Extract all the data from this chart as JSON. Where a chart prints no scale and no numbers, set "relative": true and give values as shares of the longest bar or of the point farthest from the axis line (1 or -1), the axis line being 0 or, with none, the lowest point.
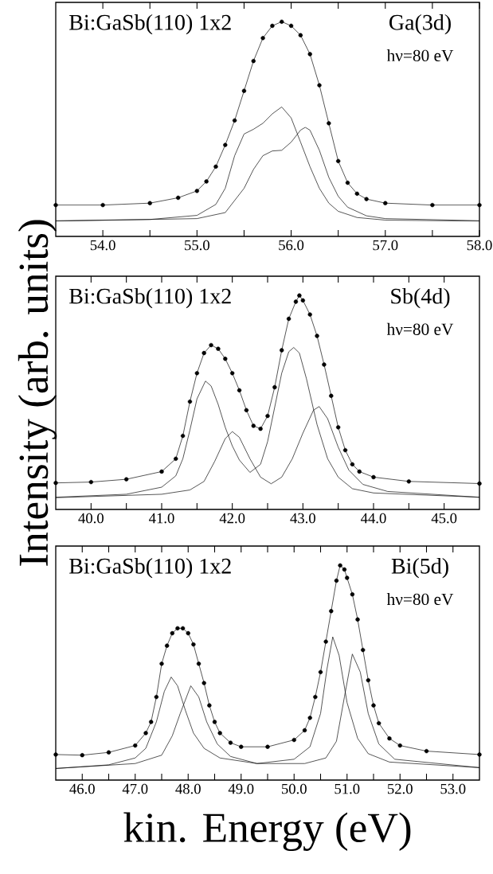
{
  "chart_data": [
    {
      "type": "line",
      "relative": true,
      "xlim": [
        53.5,
        58.0
      ],
      "xticks": [
        {
          "value": 54.0,
          "label": "54.0"
        },
        {
          "value": 54.5,
          "label": null
        },
        {
          "value": 55.0,
          "label": "55.0"
        },
        {
          "value": 55.5,
          "label": null
        },
        {
          "value": 56.0,
          "label": "56.0"
        },
        {
          "value": 56.5,
          "label": null
        },
        {
          "value": 57.0,
          "label": "57.0"
        },
        {
          "value": 57.5,
          "label": null
        },
        {
          "value": 58.0,
          "label": "58.0"
        }
      ],
      "annotations": [
        "Bi:GaSb(110) 1x2",
        "Ga(3d)",
        "hν=80 eV"
      ],
      "series": [
        {
          "type": "scatter",
          "marker": "circle",
          "color": "#000000",
          "x": [
            53.5,
            54.0,
            54.5,
            54.8,
            55.0,
            55.1,
            55.2,
            55.3,
            55.4,
            55.5,
            55.6,
            55.7,
            55.8,
            55.9,
            56.0,
            56.1,
            56.2,
            56.3,
            56.4,
            56.5,
            56.6,
            56.7,
            56.8,
            57.0,
            57.5,
            58.0
          ],
          "values": [
            0.146,
            0.146,
            0.155,
            0.18,
            0.212,
            0.256,
            0.325,
            0.426,
            0.54,
            0.678,
            0.817,
            0.924,
            0.981,
            1.0,
            0.981,
            0.937,
            0.849,
            0.704,
            0.527,
            0.351,
            0.25,
            0.199,
            0.174,
            0.155,
            0.146,
            0.146
          ]
        },
        {
          "type": "line",
          "marker": "none",
          "color": "#000000",
          "x": [
            53.5,
            54.0,
            54.5,
            54.8,
            55.0,
            55.1,
            55.2,
            55.3,
            55.4,
            55.5,
            55.6,
            55.7,
            55.8,
            55.9,
            56.0,
            56.1,
            56.2,
            56.3,
            56.4,
            56.5,
            56.6,
            56.7,
            56.8,
            57.0,
            57.5,
            58.0
          ],
          "values": [
            0.146,
            0.146,
            0.155,
            0.18,
            0.212,
            0.256,
            0.325,
            0.426,
            0.54,
            0.678,
            0.817,
            0.924,
            0.981,
            1.0,
            0.981,
            0.937,
            0.849,
            0.704,
            0.527,
            0.351,
            0.25,
            0.199,
            0.174,
            0.155,
            0.146,
            0.146
          ]
        },
        {
          "type": "line",
          "marker": "none",
          "color": "#000000",
          "x": [
            53.5,
            54.5,
            55.0,
            55.2,
            55.3,
            55.4,
            55.5,
            55.6,
            55.7,
            55.8,
            55.9,
            56.0,
            56.1,
            56.2,
            56.3,
            56.4,
            56.5,
            56.7,
            57.0,
            58.0
          ],
          "values": [
            0.073,
            0.079,
            0.098,
            0.149,
            0.224,
            0.376,
            0.477,
            0.499,
            0.527,
            0.571,
            0.603,
            0.552,
            0.439,
            0.325,
            0.224,
            0.155,
            0.117,
            0.088,
            0.076,
            0.071
          ]
        },
        {
          "type": "line",
          "marker": "none",
          "color": "#000000",
          "x": [
            53.5,
            55.0,
            55.3,
            55.5,
            55.6,
            55.7,
            55.8,
            55.9,
            56.0,
            56.1,
            56.15,
            56.2,
            56.3,
            56.4,
            56.5,
            56.6,
            56.8,
            57.0,
            58.0
          ],
          "values": [
            0.071,
            0.083,
            0.111,
            0.224,
            0.312,
            0.376,
            0.398,
            0.401,
            0.439,
            0.495,
            0.508,
            0.495,
            0.401,
            0.275,
            0.187,
            0.136,
            0.096,
            0.083,
            0.073
          ]
        }
      ]
    },
    {
      "type": "line",
      "relative": true,
      "xlim": [
        39.5,
        45.5
      ],
      "ylabel": "Intensity (arb. units)",
      "xticks": [
        {
          "value": 40.0,
          "label": "40.0"
        },
        {
          "value": 40.5,
          "label": null
        },
        {
          "value": 41.0,
          "label": "41.0"
        },
        {
          "value": 41.5,
          "label": null
        },
        {
          "value": 42.0,
          "label": "42.0"
        },
        {
          "value": 42.5,
          "label": null
        },
        {
          "value": 43.0,
          "label": "43.0"
        },
        {
          "value": 43.5,
          "label": null
        },
        {
          "value": 44.0,
          "label": "44.0"
        },
        {
          "value": 44.5,
          "label": null
        },
        {
          "value": 45.0,
          "label": "45.0"
        }
      ],
      "annotations": [
        "Bi:GaSb(110) 1x2",
        "Sb(4d)",
        "hν=80 eV"
      ],
      "series": [
        {
          "type": "scatter",
          "marker": "circle",
          "color": "#000000",
          "x": [
            39.5,
            40.0,
            40.5,
            41.0,
            41.2,
            41.3,
            41.4,
            41.5,
            41.6,
            41.7,
            41.8,
            41.9,
            42.0,
            42.1,
            42.2,
            42.3,
            42.4,
            42.5,
            42.6,
            42.7,
            42.8,
            42.9,
            42.95,
            43.0,
            43.1,
            43.2,
            43.3,
            43.4,
            43.5,
            43.6,
            43.7,
            43.8,
            44.0,
            44.5,
            45.5
          ],
          "values": [
            0.124,
            0.128,
            0.141,
            0.177,
            0.237,
            0.344,
            0.504,
            0.637,
            0.731,
            0.768,
            0.751,
            0.704,
            0.637,
            0.557,
            0.464,
            0.391,
            0.377,
            0.437,
            0.571,
            0.744,
            0.891,
            0.971,
            1.0,
            0.977,
            0.911,
            0.811,
            0.677,
            0.531,
            0.384,
            0.277,
            0.211,
            0.177,
            0.151,
            0.131,
            0.121
          ]
        },
        {
          "type": "line",
          "marker": "none",
          "color": "#000000",
          "x": [
            39.5,
            40.0,
            40.5,
            41.0,
            41.2,
            41.3,
            41.4,
            41.5,
            41.6,
            41.7,
            41.8,
            41.9,
            42.0,
            42.1,
            42.2,
            42.3,
            42.4,
            42.5,
            42.6,
            42.7,
            42.8,
            42.9,
            42.95,
            43.0,
            43.1,
            43.2,
            43.3,
            43.4,
            43.5,
            43.6,
            43.7,
            43.8,
            44.0,
            44.5,
            45.5
          ],
          "values": [
            0.124,
            0.128,
            0.141,
            0.177,
            0.237,
            0.344,
            0.504,
            0.637,
            0.731,
            0.768,
            0.751,
            0.704,
            0.637,
            0.557,
            0.464,
            0.391,
            0.377,
            0.437,
            0.571,
            0.744,
            0.891,
            0.971,
            1.0,
            0.977,
            0.911,
            0.811,
            0.677,
            0.531,
            0.384,
            0.277,
            0.211,
            0.177,
            0.151,
            0.131,
            0.121
          ]
        },
        {
          "type": "line",
          "marker": "none",
          "color": "#000000",
          "x": [
            39.5,
            40.5,
            41.0,
            41.2,
            41.3,
            41.4,
            41.5,
            41.62,
            41.7,
            41.8,
            41.9,
            42.0,
            42.1,
            42.25,
            42.4,
            42.5,
            42.6,
            42.7,
            42.8,
            42.87,
            42.95,
            43.05,
            43.2,
            43.35,
            43.5,
            43.7,
            44.0,
            45.5
          ],
          "values": [
            0.057,
            0.071,
            0.104,
            0.157,
            0.237,
            0.371,
            0.517,
            0.6,
            0.577,
            0.491,
            0.384,
            0.297,
            0.231,
            0.173,
            0.211,
            0.317,
            0.477,
            0.637,
            0.737,
            0.757,
            0.731,
            0.611,
            0.397,
            0.237,
            0.151,
            0.097,
            0.077,
            0.057
          ]
        },
        {
          "type": "line",
          "marker": "none",
          "color": "#000000",
          "x": [
            39.5,
            41.0,
            41.4,
            41.6,
            41.75,
            41.9,
            42.0,
            42.1,
            42.25,
            42.4,
            42.55,
            42.7,
            42.85,
            43.0,
            43.15,
            43.23,
            43.35,
            43.5,
            43.65,
            43.85,
            44.2,
            45.5
          ],
          "values": [
            0.055,
            0.071,
            0.091,
            0.131,
            0.224,
            0.331,
            0.364,
            0.337,
            0.237,
            0.151,
            0.12,
            0.151,
            0.237,
            0.357,
            0.464,
            0.481,
            0.424,
            0.291,
            0.184,
            0.117,
            0.084,
            0.057
          ]
        }
      ]
    },
    {
      "type": "line",
      "relative": true,
      "xlim": [
        45.5,
        53.5
      ],
      "xlabel": "kin. Energy (eV)",
      "xticks": [
        {
          "value": 46.0,
          "label": "46.0"
        },
        {
          "value": 46.5,
          "label": null
        },
        {
          "value": 47.0,
          "label": "47.0"
        },
        {
          "value": 47.5,
          "label": null
        },
        {
          "value": 48.0,
          "label": "48.0"
        },
        {
          "value": 48.5,
          "label": null
        },
        {
          "value": 49.0,
          "label": "49.0"
        },
        {
          "value": 49.5,
          "label": null
        },
        {
          "value": 50.0,
          "label": "50.0"
        },
        {
          "value": 50.5,
          "label": null
        },
        {
          "value": 51.0,
          "label": "51.0"
        },
        {
          "value": 51.5,
          "label": null
        },
        {
          "value": 52.0,
          "label": "52.0"
        },
        {
          "value": 52.5,
          "label": null
        },
        {
          "value": 53.0,
          "label": "53.0"
        }
      ],
      "annotations": [
        "Bi:GaSb(110) 1x2",
        "Bi(5d)",
        "hν=80 eV"
      ],
      "series": [
        {
          "type": "scatter",
          "marker": "circle",
          "color": "#000000",
          "x": [
            45.5,
            46.0,
            46.5,
            47.0,
            47.2,
            47.3,
            47.4,
            47.5,
            47.6,
            47.7,
            47.8,
            47.9,
            48.0,
            48.1,
            48.2,
            48.3,
            48.4,
            48.5,
            48.6,
            48.8,
            49.0,
            49.5,
            50.0,
            50.2,
            50.3,
            50.4,
            50.5,
            50.6,
            50.7,
            50.8,
            50.87,
            50.95,
            51.0,
            51.1,
            51.2,
            51.3,
            51.4,
            51.5,
            51.6,
            51.8,
            52.0,
            52.5,
            53.5
          ],
          "values": [
            0.119,
            0.116,
            0.129,
            0.161,
            0.219,
            0.271,
            0.387,
            0.542,
            0.626,
            0.684,
            0.707,
            0.707,
            0.684,
            0.632,
            0.542,
            0.452,
            0.348,
            0.271,
            0.219,
            0.174,
            0.155,
            0.155,
            0.187,
            0.232,
            0.29,
            0.387,
            0.503,
            0.645,
            0.787,
            0.929,
            1.0,
            0.981,
            0.942,
            0.865,
            0.748,
            0.606,
            0.465,
            0.348,
            0.265,
            0.194,
            0.161,
            0.135,
            0.119
          ]
        },
        {
          "type": "line",
          "marker": "none",
          "color": "#000000",
          "x": [
            45.5,
            46.0,
            46.5,
            47.0,
            47.2,
            47.3,
            47.4,
            47.5,
            47.6,
            47.7,
            47.8,
            47.9,
            48.0,
            48.1,
            48.2,
            48.3,
            48.4,
            48.5,
            48.6,
            48.8,
            49.0,
            49.5,
            50.0,
            50.2,
            50.3,
            50.4,
            50.5,
            50.6,
            50.7,
            50.8,
            50.87,
            50.95,
            51.0,
            51.1,
            51.2,
            51.3,
            51.4,
            51.5,
            51.6,
            51.8,
            52.0,
            52.5,
            53.5
          ],
          "values": [
            0.119,
            0.116,
            0.129,
            0.161,
            0.219,
            0.271,
            0.387,
            0.542,
            0.626,
            0.684,
            0.707,
            0.707,
            0.684,
            0.632,
            0.542,
            0.452,
            0.348,
            0.271,
            0.219,
            0.174,
            0.155,
            0.155,
            0.187,
            0.232,
            0.29,
            0.387,
            0.503,
            0.645,
            0.787,
            0.929,
            1.0,
            0.981,
            0.942,
            0.865,
            0.748,
            0.606,
            0.465,
            0.348,
            0.265,
            0.194,
            0.161,
            0.135,
            0.119
          ]
        },
        {
          "type": "line",
          "marker": "none",
          "color": "#000000",
          "x": [
            45.5,
            46.5,
            47.0,
            47.2,
            47.4,
            47.55,
            47.68,
            47.8,
            47.95,
            48.1,
            48.3,
            48.6,
            49.3,
            50.0,
            50.3,
            50.5,
            50.62,
            50.73,
            50.85,
            51.0,
            51.2,
            51.4,
            51.8,
            53.5
          ],
          "values": [
            0.054,
            0.071,
            0.103,
            0.148,
            0.271,
            0.413,
            0.48,
            0.439,
            0.323,
            0.219,
            0.148,
            0.103,
            0.077,
            0.097,
            0.155,
            0.31,
            0.516,
            0.667,
            0.581,
            0.361,
            0.194,
            0.123,
            0.084,
            0.058
          ]
        },
        {
          "type": "line",
          "marker": "none",
          "color": "#000000",
          "x": [
            45.5,
            47.0,
            47.5,
            47.7,
            47.85,
            48.05,
            48.2,
            48.35,
            48.55,
            48.8,
            49.3,
            50.2,
            50.6,
            50.8,
            50.95,
            51.1,
            51.25,
            51.4,
            51.6,
            51.9,
            53.5
          ],
          "values": [
            0.054,
            0.077,
            0.116,
            0.206,
            0.31,
            0.439,
            0.387,
            0.271,
            0.168,
            0.11,
            0.077,
            0.077,
            0.103,
            0.181,
            0.387,
            0.587,
            0.503,
            0.31,
            0.168,
            0.097,
            0.058
          ]
        }
      ]
    }
  ]
}
